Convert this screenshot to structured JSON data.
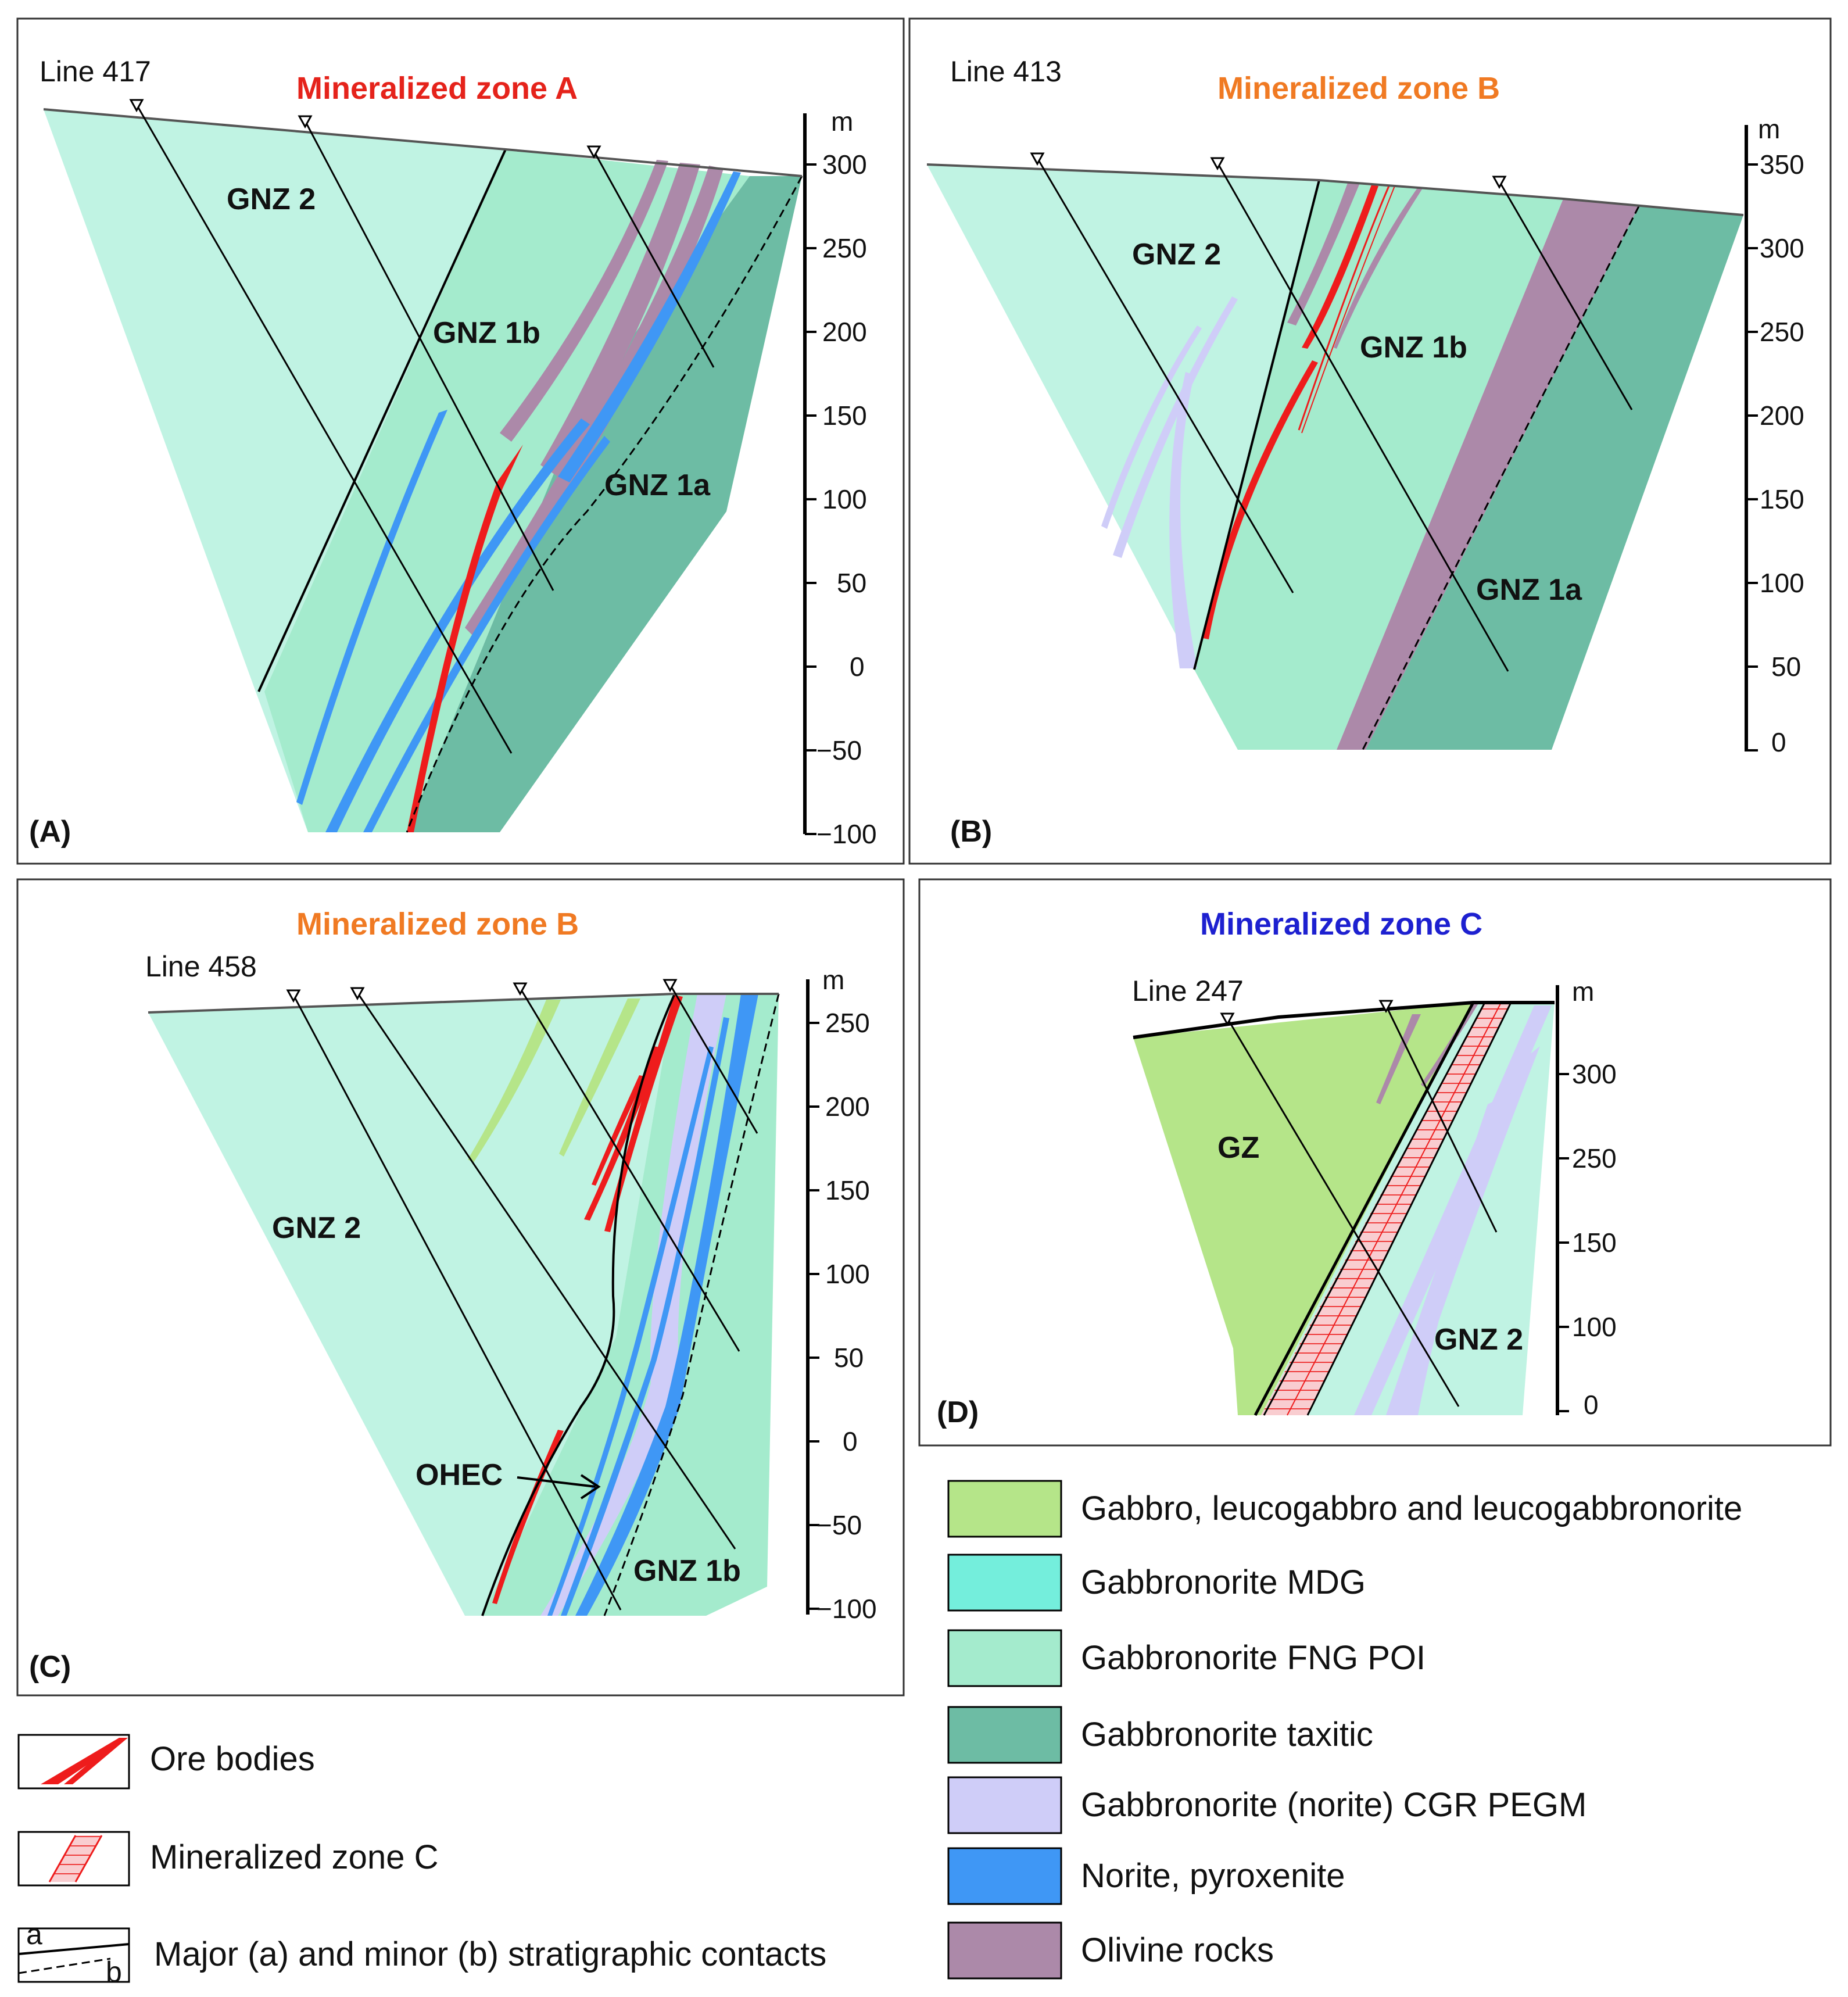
{
  "colors": {
    "gabbro": "#b5e589",
    "mdg": "#74eedc",
    "fng": "#a4ebcd",
    "gnz2": "#c0f3e3",
    "taxitic": "#6dbca4",
    "cgr": "#cfcdf8",
    "norite": "#3f97f5",
    "olivine": "#ac89a9",
    "ore": "#ee1c1c",
    "zoneA_title": "#e5231b",
    "zoneB_title": "#f07a23",
    "zoneC_title": "#1d20d0"
  },
  "panels": {
    "A": {
      "label": "(A)",
      "line": "Line 417",
      "title": "Mineralized zone A",
      "zones": [
        "GNZ 2",
        "GNZ 1b",
        "GNZ 1a"
      ],
      "unit": "m",
      "ticks": [
        "300",
        "250",
        "200",
        "150",
        "100",
        "50",
        "0",
        "−50",
        "−100"
      ]
    },
    "B": {
      "label": "(B)",
      "line": "Line 413",
      "title": "Mineralized zone B",
      "zones": [
        "GNZ 2",
        "GNZ 1b",
        "GNZ 1a"
      ],
      "unit": "m",
      "ticks": [
        "350",
        "300",
        "250",
        "200",
        "150",
        "100",
        "50",
        "0"
      ]
    },
    "C": {
      "label": "(C)",
      "line": "Line 458",
      "title": "Mineralized zone B",
      "zones": [
        "GNZ 2",
        "OHEC",
        "GNZ 1b"
      ],
      "unit": "m",
      "ticks": [
        "250",
        "200",
        "150",
        "100",
        "50",
        "0",
        "−50",
        "−100"
      ]
    },
    "D": {
      "label": "(D)",
      "line": "Line 247",
      "title": "Mineralized zone C",
      "zones": [
        "GZ",
        "GNZ 2"
      ],
      "unit": "m",
      "ticks": [
        "300",
        "250",
        "150",
        "100",
        "0"
      ]
    }
  },
  "legend_left": [
    {
      "label": "Ore bodies"
    },
    {
      "label": "Mineralized zone C"
    },
    {
      "label": "Major (a) and minor (b) stratigraphic contacts",
      "a": "a",
      "b": "b"
    }
  ],
  "legend_right": [
    {
      "label": "Gabbro, leucogabbro and leucogabbronorite",
      "icon": "gabbro-swatch"
    },
    {
      "label": "Gabbronorite MDG",
      "icon": "mdg-swatch"
    },
    {
      "label": "Gabbronorite FNG POI",
      "icon": "fng-swatch"
    },
    {
      "label": "Gabbronorite taxitic",
      "icon": "taxitic-swatch"
    },
    {
      "label": "Gabbronorite (norite) CGR PEGM",
      "icon": "cgr-swatch"
    },
    {
      "label": "Norite, pyroxenite",
      "icon": "norite-swatch"
    },
    {
      "label": "Olivine rocks",
      "icon": "olivine-swatch"
    }
  ]
}
